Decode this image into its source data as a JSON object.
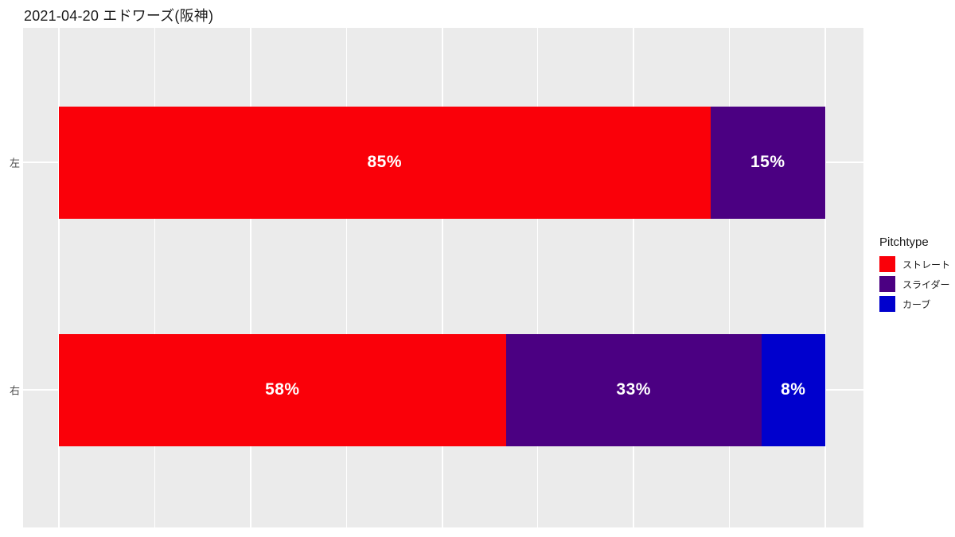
{
  "title": "2021-04-20 エドワーズ(阪神)",
  "colors": {
    "page_bg": "#FFFFFF",
    "panel_bg": "#EBEBEB",
    "grid": "#FFFFFF",
    "axis_text": "#4D4D4D",
    "title_text": "#1A1A1A",
    "bar_label": "#FFFFFF"
  },
  "legend": {
    "title": "Pitchtype",
    "entries": [
      {
        "label": "ストレート",
        "color": "#FA0009"
      },
      {
        "label": "スライダー",
        "color": "#4B0082"
      },
      {
        "label": "カーブ",
        "color": "#0000CD"
      }
    ]
  },
  "rows": [
    {
      "category": "左",
      "segments": [
        {
          "pitch": "ストレート",
          "pct": 85.0,
          "label": "85%"
        },
        {
          "pitch": "スライダー",
          "pct": 15.0,
          "label": "15%"
        }
      ]
    },
    {
      "category": "右",
      "segments": [
        {
          "pitch": "ストレート",
          "pct": 58.33,
          "label": "58%"
        },
        {
          "pitch": "スライダー",
          "pct": 33.33,
          "label": "33%"
        },
        {
          "pitch": "カーブ",
          "pct": 8.34,
          "label": "8%"
        }
      ]
    }
  ],
  "chart_data": {
    "type": "bar",
    "orientation": "horizontal",
    "stacked": true,
    "title": "2021-04-20 エドワーズ(阪神)",
    "categories": [
      "左",
      "右"
    ],
    "series": [
      {
        "name": "ストレート",
        "values": [
          85,
          58
        ]
      },
      {
        "name": "スライダー",
        "values": [
          15,
          33
        ]
      },
      {
        "name": "カーブ",
        "values": [
          0,
          8
        ]
      }
    ],
    "data_labels": [
      [
        "85%",
        "15%",
        ""
      ],
      [
        "58%",
        "33%",
        "8%"
      ]
    ],
    "xlabel": "",
    "ylabel": "",
    "xlim": [
      0,
      100
    ],
    "x_major_breaks": [
      0,
      25,
      50,
      75,
      100
    ],
    "x_minor_breaks": [
      12.5,
      37.5,
      62.5,
      87.5
    ],
    "grid": true,
    "legend_title": "Pitchtype",
    "legend_position": "right",
    "panel_background": "#EBEBEB",
    "series_colors": [
      "#FA0009",
      "#4B0082",
      "#0000CD"
    ]
  }
}
